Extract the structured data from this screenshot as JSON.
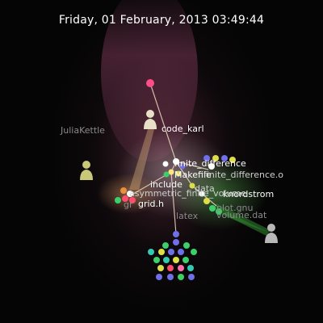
{
  "header": {
    "date": "Friday, 01 February, 2013 03:49:44"
  },
  "users": [
    "JuliaKettle",
    "code_karl",
    "knordstrom"
  ],
  "labels": {
    "finite_difference": "finite_difference",
    "makefile": "Makefile",
    "finite_difference_o": "finite_difference.o",
    "include": "include",
    "data": "data",
    "asymmetric": "asymmetric_finite_volume",
    "grid": "grid.h",
    "grid_prefix": "gr",
    "gnu": "plot.gnu",
    "volume_dat": "volume.dat",
    "latex": "latex"
  },
  "colors": {
    "beam_tan": "#c8a070",
    "beam_green": "#2e7a2a",
    "node_blue": "#6f6fe8",
    "node_green": "#3ccf6a",
    "node_red": "#ff4d6d",
    "node_yellow": "#dede4a",
    "node_teal": "#34c9b0",
    "node_pink": "#ff6fa8"
  }
}
